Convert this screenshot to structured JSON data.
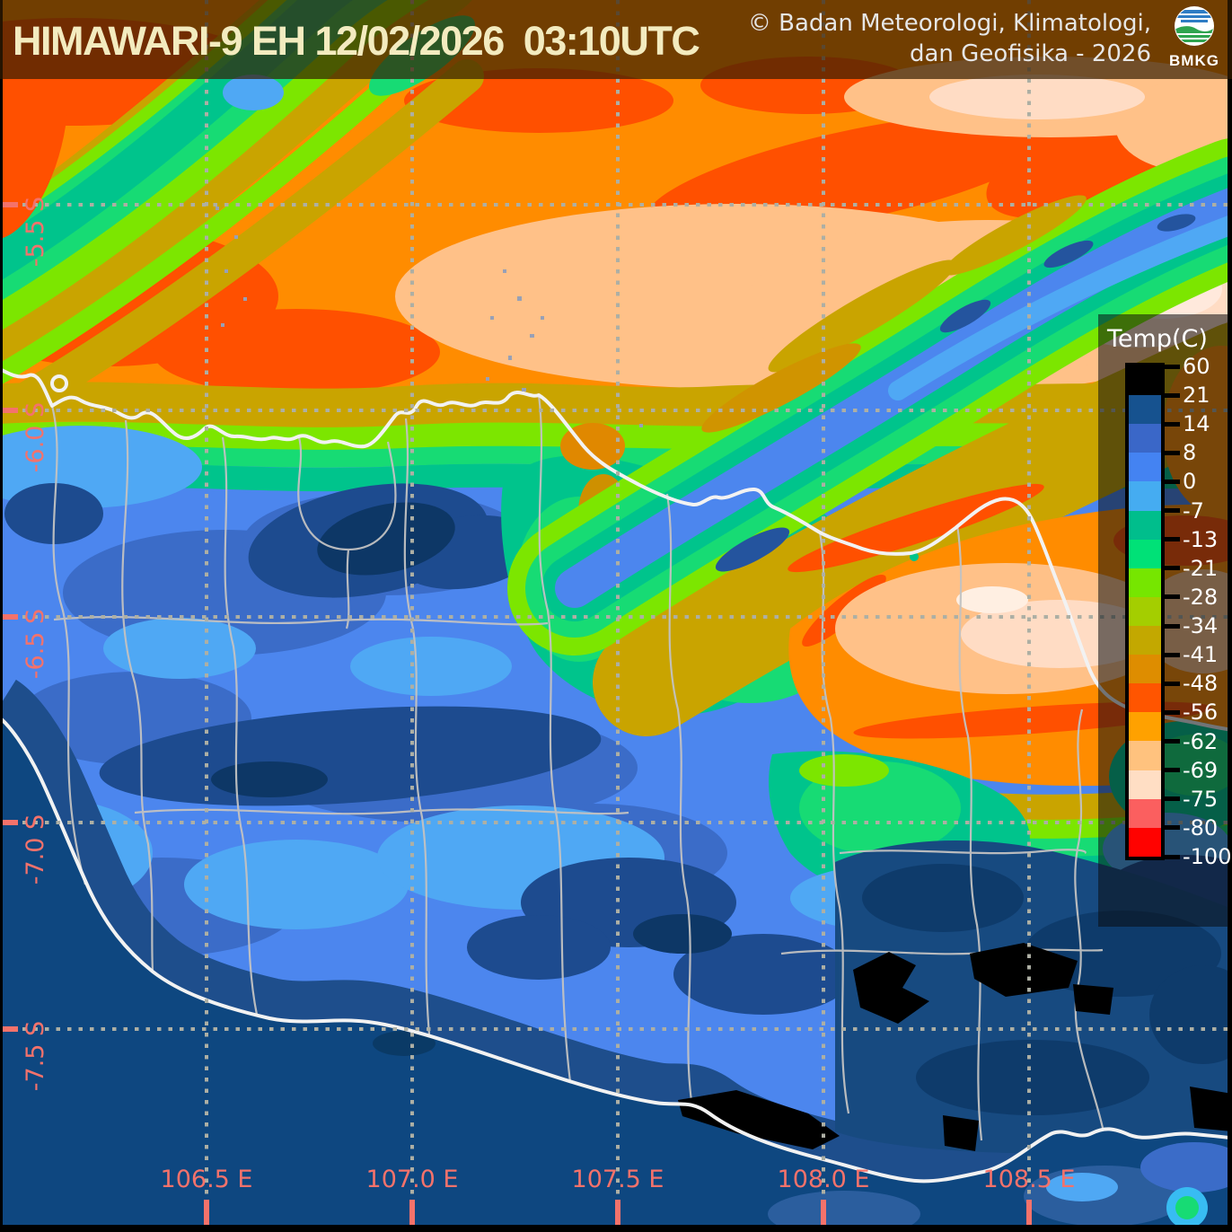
{
  "header": {
    "title": "HIMAWARI-9 EH 12/02/2026  03:10UTC",
    "copyright_line1": "© Badan Meteorologi, Klimatologi,",
    "copyright_line2": "dan Geofisika -  2026",
    "logo_text": "BMKG"
  },
  "legend": {
    "title": "Temp(C)",
    "tick_values": [
      60,
      21,
      14,
      8,
      0,
      -7,
      -13,
      -21,
      -28,
      -34,
      -41,
      -48,
      -56,
      -62,
      -69,
      -75,
      -80,
      -100
    ],
    "segment_colors": [
      "#000000",
      "#16528F",
      "#3A67C8",
      "#4483F2",
      "#45ACF1",
      "#00BE8C",
      "#00E177",
      "#76E600",
      "#A4CE00",
      "#C3A800",
      "#DE8D00",
      "#FF5500",
      "#FFA100",
      "#FFC27E",
      "#FFDEC4",
      "#FB5F5F",
      "#FF0200"
    ]
  },
  "axes": {
    "lat_labels": [
      "-5.5 S",
      "-6.0 S",
      "-6.5 S",
      "-7.0 S",
      "-7.5 S"
    ],
    "lon_labels": [
      "106.5 E",
      "107.0 E",
      "107.5 E",
      "108.0 E",
      "108.5 E"
    ],
    "label_color": "#F4726B"
  },
  "map": {
    "palette": {
      "sea_dark_navy": "#0E4780",
      "field_blue": "#4C86EE",
      "sky_blue": "#4FA8F4",
      "medium_blue": "#3B6CC8",
      "navy": "#1D4B8F",
      "deep_navy": "#0D3766",
      "teal": "#00C48C",
      "green": "#17DB74",
      "lime": "#7CE600",
      "olive_gold": "#C9A400",
      "orange": "#FF8C00",
      "red_orange": "#FF5000",
      "peach": "#FFC188",
      "light_peach": "#FFDCC4",
      "coastline_white": "#F2F2F2",
      "boundary_gray": "#C2C2C2"
    }
  }
}
